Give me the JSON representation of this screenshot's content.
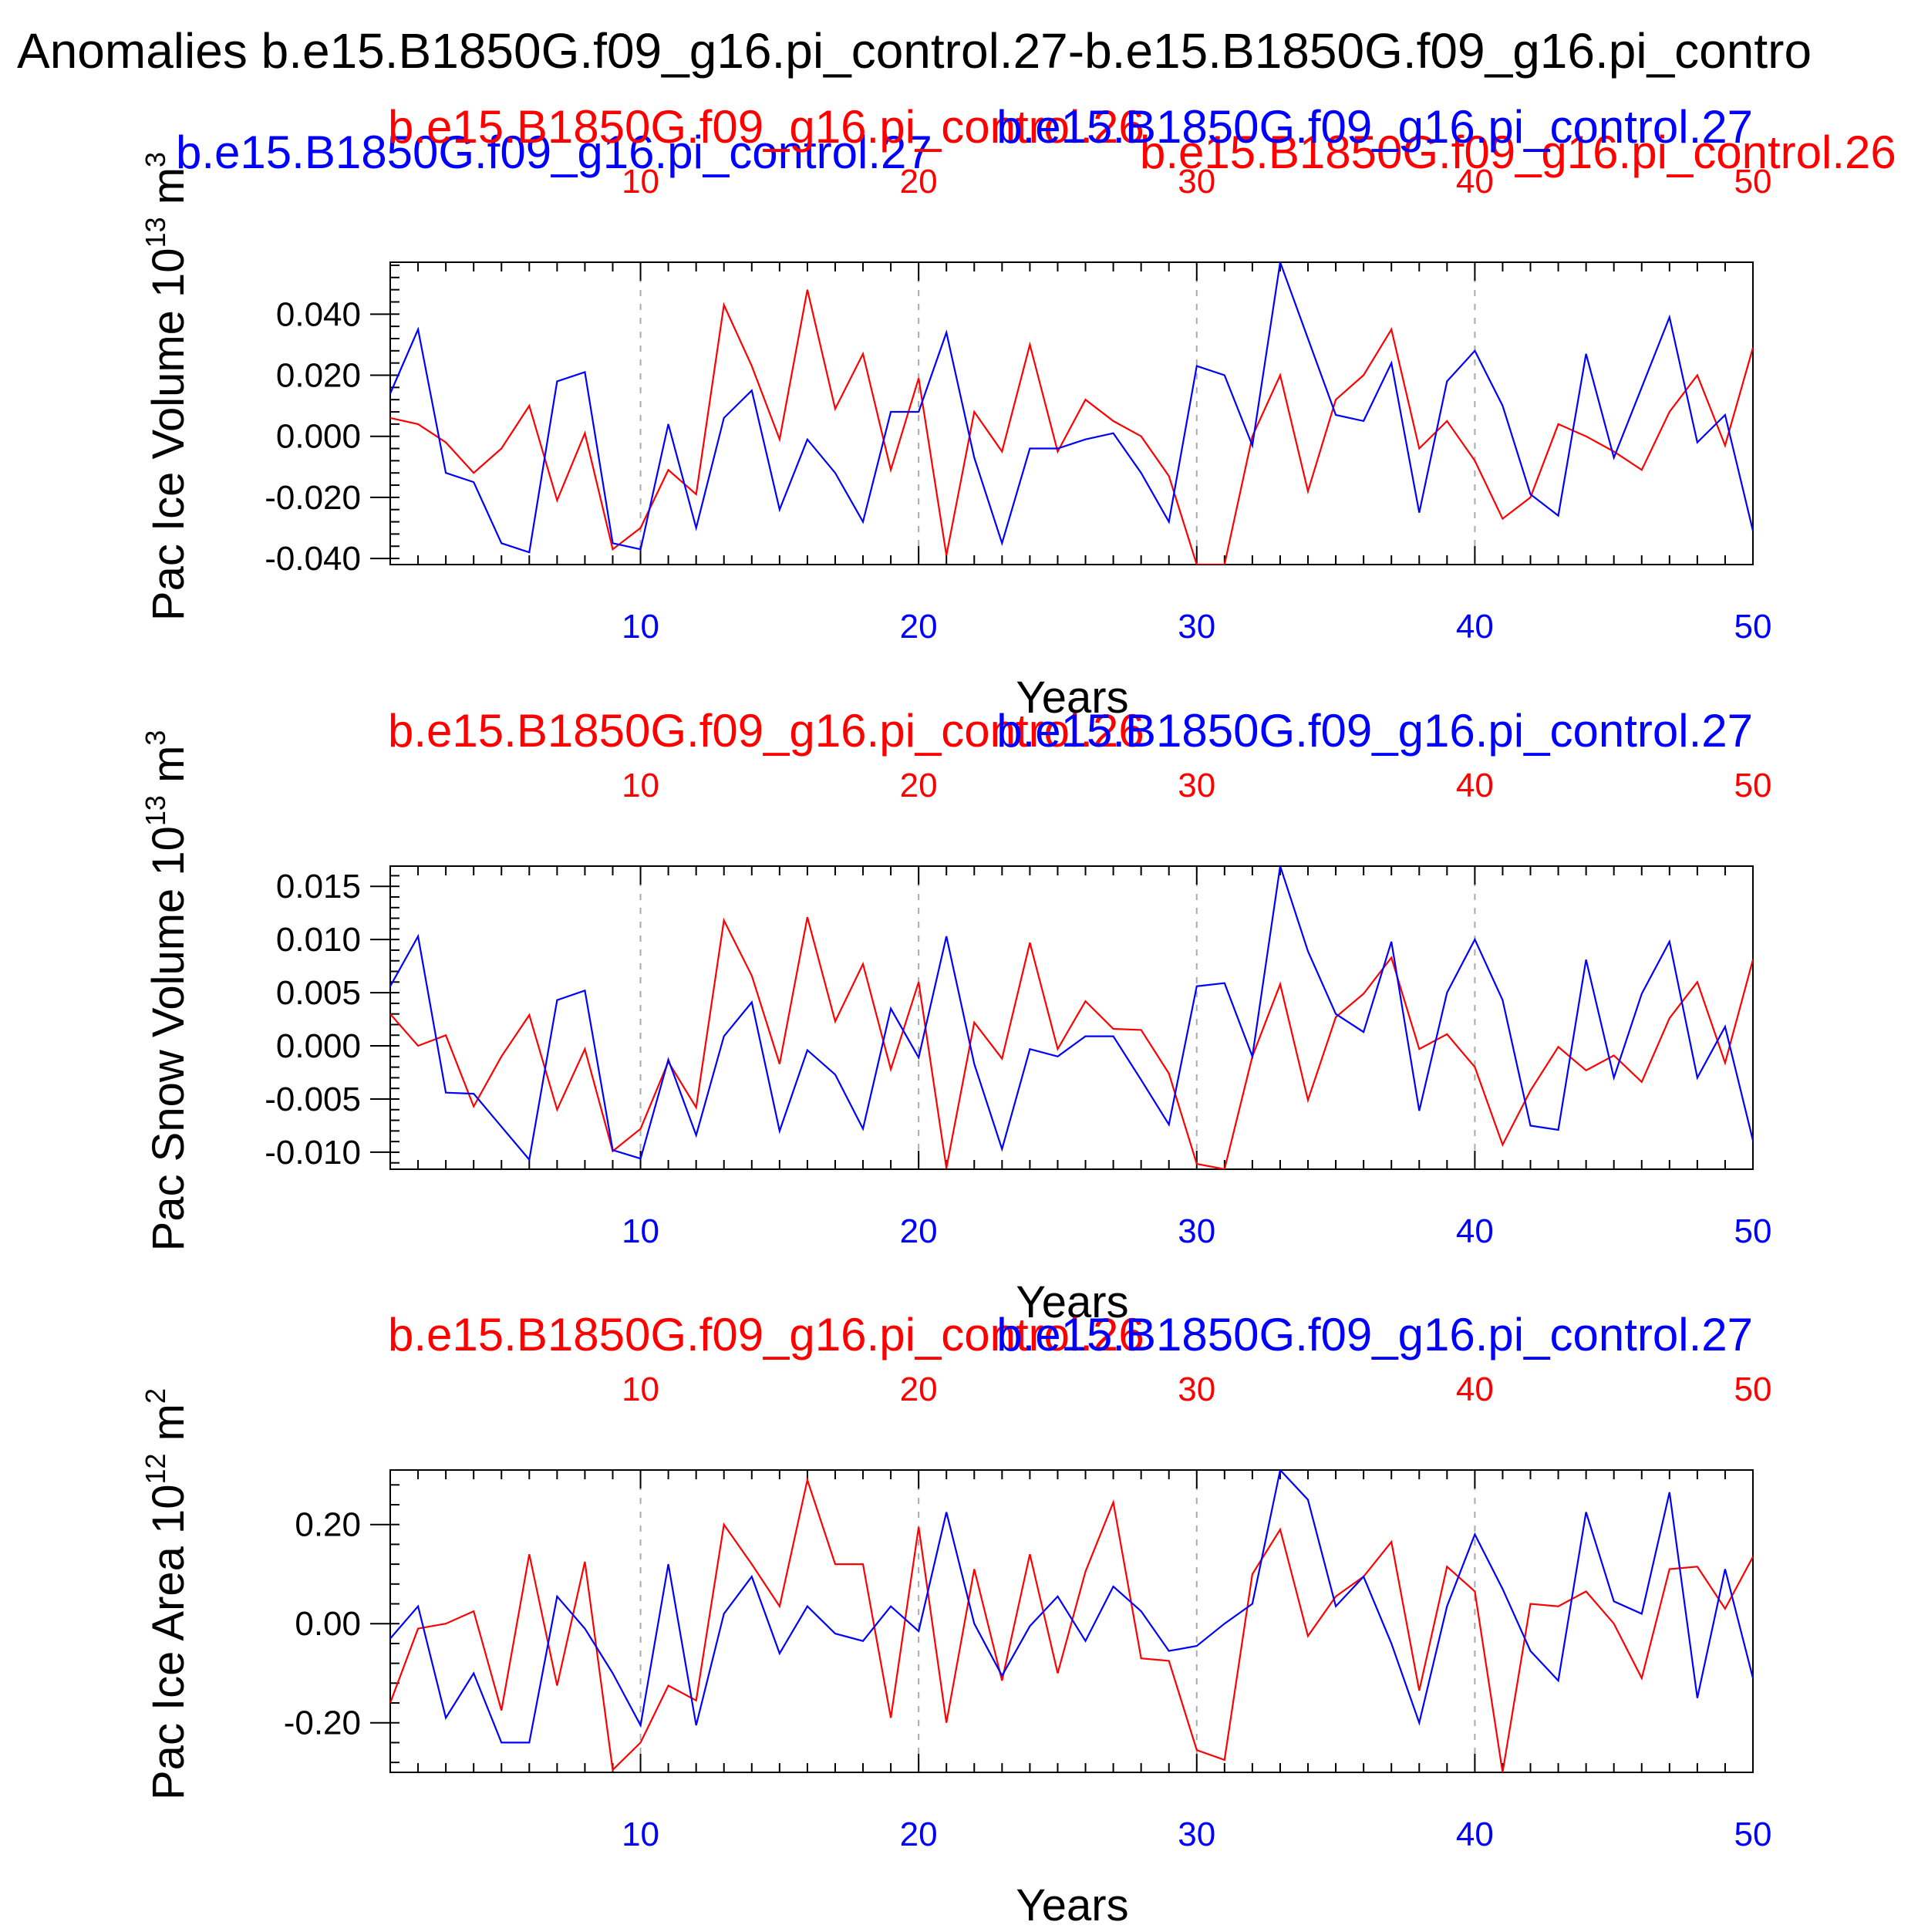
{
  "title": "Anomalies b.e15.B1850G.f09_g16.pi_control.27-b.e15.B1850G.f09_g16.pi_contro",
  "colors": {
    "red": "#ff0000",
    "blue": "#0000ff",
    "axis": "#000000",
    "grid": "#aaaaaa"
  },
  "legend": {
    "top_left": "b.e15.B1850G.f09_g16.pi_control.27",
    "top_right": "b.e15.B1850G.f09_g16.pi_control.26"
  },
  "chart_data": [
    {
      "type": "line",
      "ylabel_main": "Pac Ice Volume 10",
      "ylabel_exp": "13",
      "ylabel_unit": " m",
      "ylabel_unit_exp": "3",
      "xlabel": "Years",
      "top_title_red": "b.e15.B1850G.f09_g16.pi_control.26",
      "top_title_blue": "b.e15.B1850G.f09_g16.pi_control.27",
      "xlim": [
        1,
        50
      ],
      "ylim": [
        -0.042,
        0.057
      ],
      "yticks": [
        -0.04,
        -0.02,
        0.0,
        0.02,
        0.04
      ],
      "ytick_labels": [
        "-0.040",
        "-0.020",
        "0.000",
        "0.020",
        "0.040"
      ],
      "xticks": [
        10,
        20,
        30,
        40,
        50
      ],
      "xtick_labels": [
        "10",
        "20",
        "30",
        "40",
        "50"
      ],
      "x": [
        1,
        2,
        3,
        4,
        5,
        6,
        7,
        8,
        9,
        10,
        11,
        12,
        13,
        14,
        15,
        16,
        17,
        18,
        19,
        20,
        21,
        22,
        23,
        24,
        25,
        26,
        27,
        28,
        29,
        30,
        31,
        32,
        33,
        34,
        35,
        36,
        37,
        38,
        39,
        40,
        41,
        42,
        43,
        44,
        45,
        46,
        47,
        48,
        49,
        50
      ],
      "series": [
        {
          "name": "b.e15.B1850G.f09_g16.pi_control.26",
          "color": "#ff0000",
          "values": [
            0.006,
            0.004,
            -0.002,
            -0.012,
            -0.004,
            0.01,
            -0.021,
            0.001,
            -0.037,
            -0.03,
            -0.011,
            -0.019,
            0.043,
            0.023,
            -0.001,
            0.048,
            0.009,
            0.027,
            -0.011,
            0.019,
            -0.039,
            0.008,
            -0.005,
            0.03,
            -0.005,
            0.012,
            0.005,
            0.0,
            -0.013,
            -0.042,
            -0.042,
            0.0,
            0.02,
            -0.018,
            0.012,
            0.02,
            0.035,
            -0.004,
            0.005,
            -0.008,
            -0.027,
            -0.02,
            0.004,
            0.0,
            -0.005,
            -0.011,
            0.008,
            0.02,
            -0.003,
            0.029
          ]
        },
        {
          "name": "b.e15.B1850G.f09_g16.pi_control.27",
          "color": "#0000ff",
          "values": [
            0.014,
            0.035,
            -0.012,
            -0.015,
            -0.035,
            -0.038,
            0.018,
            0.021,
            -0.035,
            -0.037,
            0.004,
            -0.03,
            0.006,
            0.015,
            -0.024,
            -0.001,
            -0.012,
            -0.028,
            0.008,
            0.008,
            0.034,
            -0.007,
            -0.035,
            -0.004,
            -0.004,
            -0.001,
            0.001,
            -0.012,
            -0.028,
            0.023,
            0.02,
            -0.003,
            0.057,
            0.032,
            0.007,
            0.005,
            0.024,
            -0.025,
            0.018,
            0.028,
            0.01,
            -0.019,
            -0.026,
            0.027,
            -0.007,
            0.016,
            0.039,
            -0.002,
            0.007,
            -0.031
          ]
        }
      ]
    },
    {
      "type": "line",
      "ylabel_main": "Pac Snow Volume 10",
      "ylabel_exp": "13",
      "ylabel_unit": " m",
      "ylabel_unit_exp": "3",
      "xlabel": "Years",
      "top_title_red": "b.e15.B1850G.f09_g16.pi_control.26",
      "top_title_blue": "b.e15.B1850G.f09_g16.pi_control.27",
      "xlim": [
        1,
        50
      ],
      "ylim": [
        -0.0116,
        0.0169
      ],
      "yticks": [
        -0.01,
        -0.005,
        0.0,
        0.005,
        0.01,
        0.015
      ],
      "ytick_labels": [
        "-0.010",
        "-0.005",
        "0.000",
        "0.005",
        "0.010",
        "0.015"
      ],
      "xticks": [
        10,
        20,
        30,
        40,
        50
      ],
      "xtick_labels": [
        "10",
        "20",
        "30",
        "40",
        "50"
      ],
      "x": [
        1,
        2,
        3,
        4,
        5,
        6,
        7,
        8,
        9,
        10,
        11,
        12,
        13,
        14,
        15,
        16,
        17,
        18,
        19,
        20,
        21,
        22,
        23,
        24,
        25,
        26,
        27,
        28,
        29,
        30,
        31,
        32,
        33,
        34,
        35,
        36,
        37,
        38,
        39,
        40,
        41,
        42,
        43,
        44,
        45,
        46,
        47,
        48,
        49,
        50
      ],
      "series": [
        {
          "name": "b.e15.B1850G.f09_g16.pi_control.26",
          "color": "#ff0000",
          "values": [
            0.003,
            0.0,
            0.001,
            -0.0057,
            -0.001,
            0.0029,
            -0.006,
            -0.0003,
            -0.0099,
            -0.0078,
            -0.0015,
            -0.0058,
            0.0118,
            0.0066,
            -0.0017,
            0.0121,
            0.0023,
            0.0077,
            -0.0022,
            0.006,
            -0.0115,
            0.0022,
            -0.0012,
            0.0097,
            -0.0003,
            0.0042,
            0.0016,
            0.0015,
            -0.0026,
            -0.0111,
            -0.0116,
            -0.001,
            0.0058,
            -0.0051,
            0.0027,
            0.0049,
            0.0083,
            -0.0003,
            0.0011,
            -0.002,
            -0.0093,
            -0.0042,
            -0.0001,
            -0.0023,
            -0.0009,
            -0.0034,
            0.0026,
            0.006,
            -0.0016,
            0.0081
          ]
        },
        {
          "name": "b.e15.B1850G.f09_g16.pi_control.27",
          "color": "#0000ff",
          "values": [
            0.0056,
            0.0103,
            -0.0044,
            -0.0045,
            -0.0076,
            -0.0107,
            0.0043,
            0.0052,
            -0.0098,
            -0.0106,
            -0.0013,
            -0.0084,
            0.0009,
            0.0041,
            -0.008,
            -0.0004,
            -0.0027,
            -0.0078,
            0.0035,
            -0.0011,
            0.0103,
            -0.0017,
            -0.0097,
            -0.0003,
            -0.001,
            0.0009,
            0.0009,
            -0.0032,
            -0.0074,
            0.0056,
            0.0059,
            -0.001,
            0.0169,
            0.0089,
            0.003,
            0.0013,
            0.0098,
            -0.0061,
            0.005,
            0.01,
            0.0043,
            -0.0075,
            -0.0079,
            0.0081,
            -0.003,
            0.0049,
            0.0098,
            -0.003,
            0.0018,
            -0.0089
          ]
        }
      ]
    },
    {
      "type": "line",
      "ylabel_main": "Pac Ice Area 10",
      "ylabel_exp": "12",
      "ylabel_unit": " m",
      "ylabel_unit_exp": "2",
      "xlabel": "Years",
      "top_title_red": "b.e15.B1850G.f09_g16.pi_control.26",
      "top_title_blue": "b.e15.B1850G.f09_g16.pi_control.27",
      "xlim": [
        1,
        50
      ],
      "ylim": [
        -0.3,
        0.31
      ],
      "yticks": [
        -0.2,
        0.0,
        0.2
      ],
      "ytick_labels": [
        "-0.20",
        "0.00",
        "0.20"
      ],
      "xticks": [
        10,
        20,
        30,
        40,
        50
      ],
      "xtick_labels": [
        "10",
        "20",
        "30",
        "40",
        "50"
      ],
      "x": [
        1,
        2,
        3,
        4,
        5,
        6,
        7,
        8,
        9,
        10,
        11,
        12,
        13,
        14,
        15,
        16,
        17,
        18,
        19,
        20,
        21,
        22,
        23,
        24,
        25,
        26,
        27,
        28,
        29,
        30,
        31,
        32,
        33,
        34,
        35,
        36,
        37,
        38,
        39,
        40,
        41,
        42,
        43,
        44,
        45,
        46,
        47,
        48,
        49,
        50
      ],
      "series": [
        {
          "name": "b.e15.B1850G.f09_g16.pi_control.26",
          "color": "#ff0000",
          "values": [
            -0.16,
            -0.01,
            0.0,
            0.025,
            -0.175,
            0.14,
            -0.125,
            0.125,
            -0.295,
            -0.24,
            -0.125,
            -0.155,
            0.2,
            0.12,
            0.035,
            0.29,
            0.12,
            0.12,
            -0.19,
            0.195,
            -0.2,
            0.11,
            -0.115,
            0.14,
            -0.1,
            0.105,
            0.245,
            -0.07,
            -0.075,
            -0.255,
            -0.275,
            0.1,
            0.19,
            -0.025,
            0.055,
            0.095,
            0.165,
            -0.135,
            0.115,
            0.065,
            -0.3,
            0.04,
            0.035,
            0.065,
            0.0,
            -0.11,
            0.11,
            0.115,
            0.03,
            0.135
          ]
        },
        {
          "name": "b.e15.B1850G.f09_g16.pi_control.27",
          "color": "#0000ff",
          "values": [
            -0.03,
            0.035,
            -0.19,
            -0.1,
            -0.24,
            -0.24,
            0.055,
            -0.01,
            -0.1,
            -0.205,
            0.12,
            -0.205,
            0.02,
            0.095,
            -0.06,
            0.035,
            -0.02,
            -0.035,
            0.035,
            -0.015,
            0.225,
            0.0,
            -0.105,
            -0.005,
            0.055,
            -0.035,
            0.075,
            0.025,
            -0.055,
            -0.045,
            0.0,
            0.04,
            0.31,
            0.25,
            0.035,
            0.095,
            -0.04,
            -0.2,
            0.035,
            0.18,
            0.07,
            -0.055,
            -0.115,
            0.225,
            0.045,
            0.02,
            0.265,
            -0.15,
            0.11,
            -0.11
          ]
        }
      ]
    }
  ]
}
